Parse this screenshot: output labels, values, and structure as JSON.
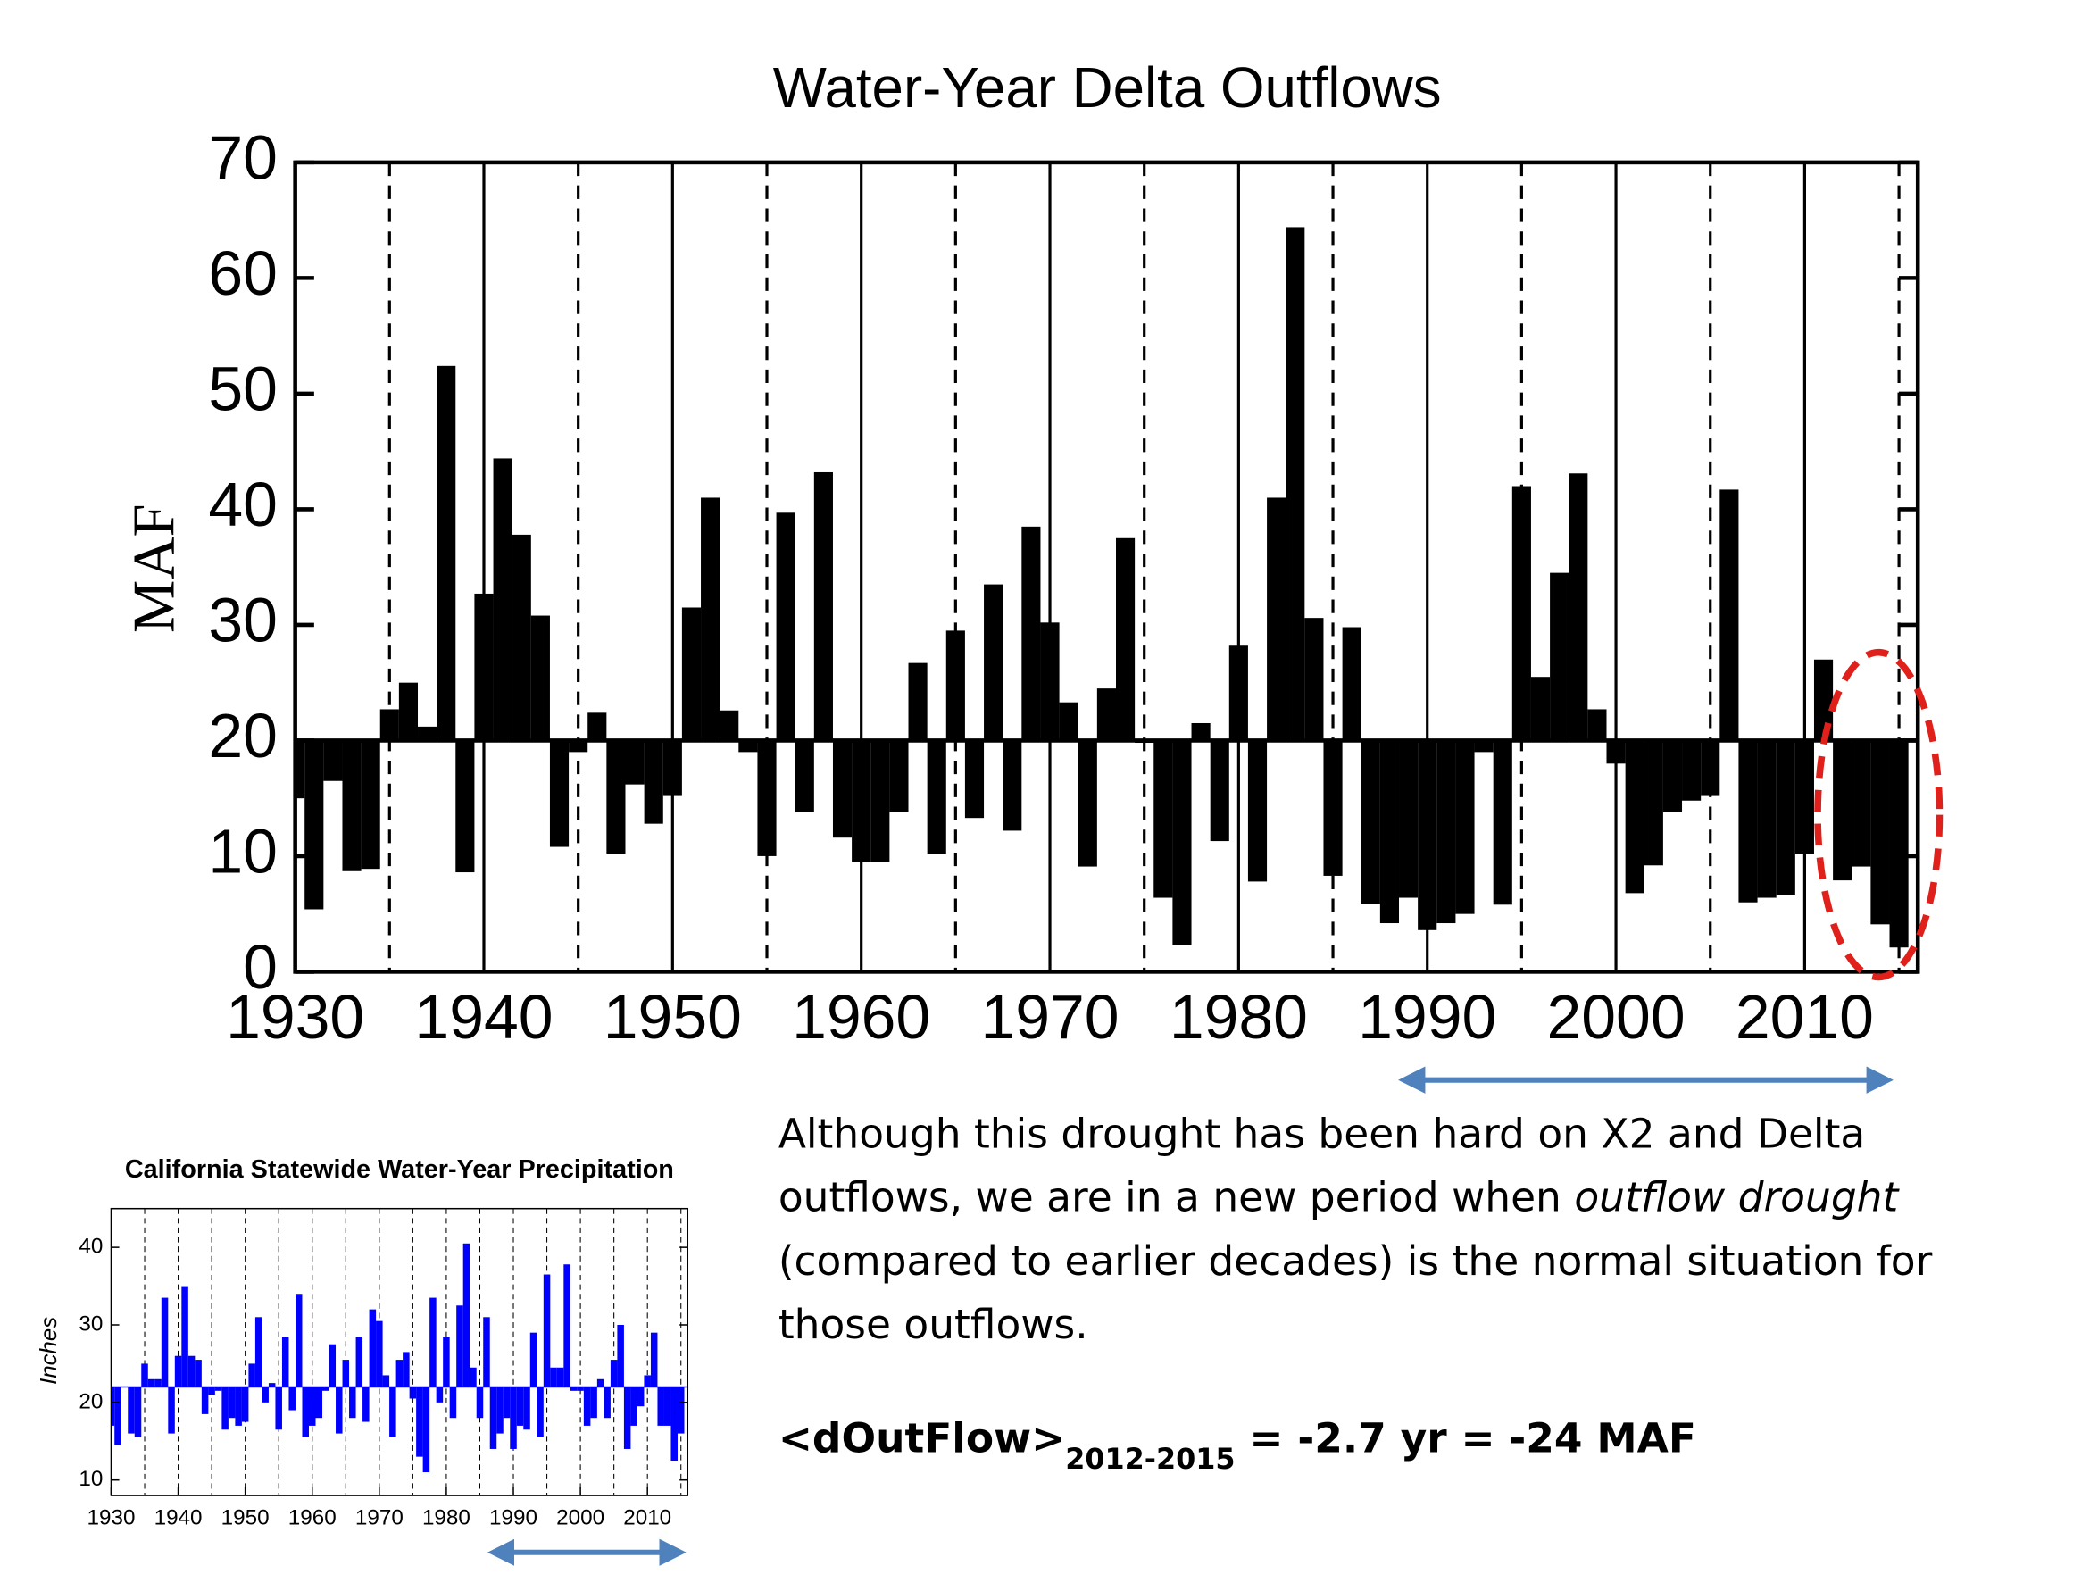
{
  "chart_data": [
    {
      "type": "bar",
      "title": "Water-Year Delta Outflows",
      "ylabel": "MAF",
      "color": "#000000",
      "baseline": 20,
      "x": [
        1930,
        1931,
        1932,
        1933,
        1934,
        1935,
        1936,
        1937,
        1938,
        1939,
        1940,
        1941,
        1942,
        1943,
        1944,
        1945,
        1946,
        1947,
        1948,
        1949,
        1950,
        1951,
        1952,
        1953,
        1954,
        1955,
        1956,
        1957,
        1958,
        1959,
        1960,
        1961,
        1962,
        1963,
        1964,
        1965,
        1966,
        1967,
        1968,
        1969,
        1970,
        1971,
        1972,
        1973,
        1974,
        1975,
        1976,
        1977,
        1978,
        1979,
        1980,
        1981,
        1982,
        1983,
        1984,
        1985,
        1986,
        1987,
        1988,
        1989,
        1990,
        1991,
        1992,
        1993,
        1994,
        1995,
        1996,
        1997,
        1998,
        1999,
        2000,
        2001,
        2002,
        2003,
        2004,
        2005,
        2006,
        2007,
        2008,
        2009,
        2010,
        2011,
        2012,
        2013,
        2014,
        2015
      ],
      "values": [
        15,
        5.4,
        16.5,
        8.7,
        8.9,
        22.7,
        25,
        21.2,
        52.4,
        8.6,
        32.7,
        44.4,
        37.8,
        30.8,
        10.8,
        19,
        22.4,
        10.2,
        16.2,
        12.8,
        15.2,
        31.5,
        41,
        22.6,
        19,
        10,
        39.7,
        13.8,
        43.2,
        11.6,
        9.5,
        9.5,
        13.8,
        26.7,
        10.2,
        29.5,
        13.3,
        33.5,
        12.2,
        38.5,
        30.2,
        23.3,
        9.1,
        24.5,
        37.5,
        19.8,
        6.4,
        2.3,
        21.5,
        11.3,
        28.2,
        7.8,
        41,
        64.4,
        30.6,
        8.3,
        29.8,
        5.9,
        4.2,
        6.4,
        3.6,
        4.2,
        5,
        19,
        5.8,
        42,
        25.5,
        34.5,
        43.1,
        22.7,
        18,
        6.8,
        9.2,
        13.8,
        14.8,
        15.2,
        41.7,
        6,
        6.4,
        6.6,
        10.2,
        27,
        7.9,
        9.1,
        4.1,
        2.1
      ],
      "xlim": [
        1930,
        2016
      ],
      "ylim": [
        0,
        70
      ],
      "xticks": [
        1930,
        1940,
        1950,
        1960,
        1970,
        1980,
        1990,
        2000,
        2010
      ],
      "yticks": [
        0,
        10,
        20,
        30,
        40,
        50,
        60,
        70
      ],
      "grid": true,
      "dashed_lines": [
        1935,
        1945,
        1955,
        1965,
        1975,
        1985,
        1995,
        2005,
        2015
      ]
    },
    {
      "type": "bar",
      "title": "California Statewide Water-Year Precipitation",
      "ylabel": "Inches",
      "color": "#0000ff",
      "baseline": 22,
      "x": [
        1930,
        1931,
        1932,
        1933,
        1934,
        1935,
        1936,
        1937,
        1938,
        1939,
        1940,
        1941,
        1942,
        1943,
        1944,
        1945,
        1946,
        1947,
        1948,
        1949,
        1950,
        1951,
        1952,
        1953,
        1954,
        1955,
        1956,
        1957,
        1958,
        1959,
        1960,
        1961,
        1962,
        1963,
        1964,
        1965,
        1966,
        1967,
        1968,
        1969,
        1970,
        1971,
        1972,
        1973,
        1974,
        1975,
        1976,
        1977,
        1978,
        1979,
        1980,
        1981,
        1982,
        1983,
        1984,
        1985,
        1986,
        1987,
        1988,
        1989,
        1990,
        1991,
        1992,
        1993,
        1994,
        1995,
        1996,
        1997,
        1998,
        1999,
        2000,
        2001,
        2002,
        2003,
        2004,
        2005,
        2006,
        2007,
        2008,
        2009,
        2010,
        2011,
        2012,
        2013,
        2014,
        2015
      ],
      "values": [
        17,
        14.5,
        22,
        16,
        15.5,
        25,
        23,
        23,
        33.5,
        16,
        26,
        35,
        26,
        25.5,
        18.5,
        21,
        21.5,
        16.5,
        18,
        17,
        17.5,
        25,
        31,
        20,
        22.5,
        16.5,
        28.5,
        19,
        34,
        15.5,
        17,
        18,
        21.5,
        27.5,
        16,
        25.5,
        18,
        28.5,
        17.5,
        32,
        30.5,
        23.5,
        15.5,
        25.5,
        26.5,
        20.5,
        13,
        11,
        33.5,
        20,
        28.5,
        18,
        32.5,
        40.5,
        24.5,
        18,
        31,
        14,
        16,
        18,
        14,
        17,
        16.5,
        29,
        15.5,
        36.5,
        24.5,
        24.5,
        37.8,
        21.5,
        21.5,
        17,
        18,
        23,
        18,
        25.5,
        30,
        14,
        17,
        19.5,
        23.5,
        29,
        17,
        17,
        12.5,
        16
      ],
      "xlim": [
        1930,
        2016
      ],
      "ylim": [
        8,
        45
      ],
      "xticks": [
        1930,
        1940,
        1950,
        1960,
        1970,
        1980,
        1990,
        2000,
        2010
      ],
      "yticks": [
        10,
        20,
        30,
        40
      ],
      "grid": false,
      "dashed_lines": [
        1935,
        1940,
        1945,
        1950,
        1955,
        1960,
        1965,
        1970,
        1975,
        1980,
        1985,
        1990,
        1995,
        2000,
        2005,
        2010,
        2015
      ]
    }
  ],
  "text": {
    "lines": [
      [
        {
          "text": "Although this drought has been hard on X2 and Delta",
          "italic": false
        }
      ],
      [
        {
          "text": "outflows, we are in a new period when ",
          "italic": false
        },
        {
          "text": "outflow drought",
          "italic": true
        }
      ],
      [
        {
          "text": "(compared to earlier decades) is the normal situation for",
          "italic": false
        }
      ],
      [
        {
          "text": "those outflows.",
          "italic": false
        }
      ]
    ],
    "formula": {
      "main": "<dOutFlow>",
      "subscript": "2012-2015",
      "rest": " = -2.7 yr = -24 MAF"
    }
  }
}
